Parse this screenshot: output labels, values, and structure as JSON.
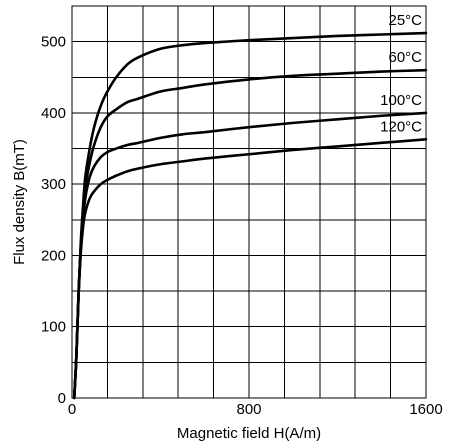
{
  "chart_data": {
    "type": "line",
    "title": "",
    "xlabel": "Magnetic field H(A/m)",
    "ylabel": "Flux density B(mT)",
    "xlim": [
      0,
      1600
    ],
    "ylim": [
      0,
      550
    ],
    "x_ticks": [
      0,
      800,
      1600
    ],
    "y_ticks": [
      0,
      100,
      200,
      300,
      400,
      500
    ],
    "x_grid_step": 160,
    "y_grid_step": 50,
    "grid": true,
    "legend": "none",
    "series": [
      {
        "name": "25°C",
        "x": [
          10,
          20,
          30,
          40,
          50,
          60,
          80,
          100,
          130,
          160,
          200,
          250,
          300,
          400,
          500,
          600,
          800,
          1000,
          1200,
          1400,
          1600
        ],
        "y": [
          0,
          60,
          150,
          220,
          270,
          310,
          350,
          380,
          410,
          430,
          450,
          468,
          478,
          490,
          495,
          498,
          502,
          505,
          508,
          510,
          512
        ]
      },
      {
        "name": "60°C",
        "x": [
          10,
          20,
          30,
          40,
          50,
          60,
          80,
          100,
          130,
          160,
          200,
          250,
          300,
          400,
          500,
          600,
          800,
          1000,
          1200,
          1400,
          1600
        ],
        "y": [
          0,
          60,
          150,
          215,
          260,
          295,
          330,
          355,
          380,
          395,
          405,
          415,
          420,
          430,
          435,
          440,
          447,
          452,
          455,
          458,
          460
        ]
      },
      {
        "name": "100°C",
        "x": [
          10,
          20,
          30,
          40,
          50,
          60,
          80,
          100,
          130,
          160,
          200,
          250,
          300,
          400,
          500,
          600,
          800,
          1000,
          1200,
          1400,
          1600
        ],
        "y": [
          0,
          60,
          150,
          210,
          250,
          280,
          310,
          325,
          338,
          345,
          350,
          355,
          358,
          365,
          370,
          373,
          380,
          386,
          391,
          396,
          400
        ]
      },
      {
        "name": "120°C",
        "x": [
          10,
          20,
          30,
          40,
          50,
          60,
          80,
          100,
          130,
          160,
          200,
          250,
          300,
          400,
          500,
          600,
          800,
          1000,
          1200,
          1400,
          1600
        ],
        "y": [
          0,
          60,
          145,
          205,
          240,
          260,
          280,
          290,
          300,
          306,
          312,
          318,
          322,
          328,
          332,
          336,
          342,
          348,
          353,
          358,
          363
        ]
      }
    ]
  }
}
